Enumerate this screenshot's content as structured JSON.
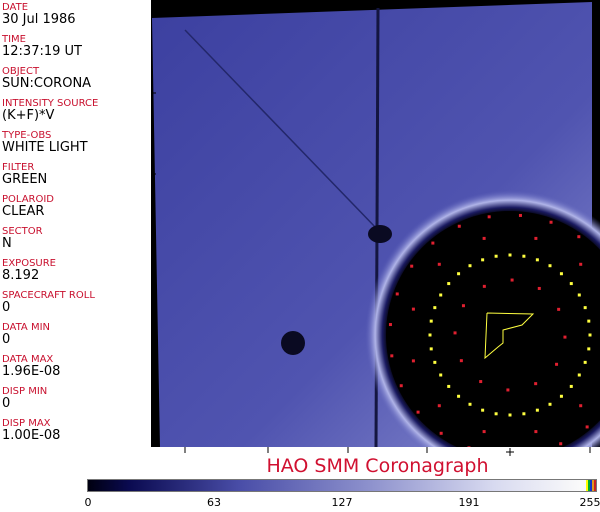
{
  "header_fields": [
    {
      "label": "DATE",
      "value": "30 Jul 1986"
    },
    {
      "label": "TIME",
      "value": "12:37:19 UT"
    },
    {
      "label": "OBJECT",
      "value": "SUN:CORONA"
    },
    {
      "label": "INTENSITY SOURCE",
      "value": "(K+F)*V"
    },
    {
      "label": "TYPE-OBS",
      "value": "WHITE LIGHT"
    },
    {
      "label": "FILTER",
      "value": "GREEN"
    },
    {
      "label": "POLAROID",
      "value": "CLEAR"
    },
    {
      "label": "SECTOR",
      "value": "N"
    },
    {
      "label": "EXPOSURE",
      "value": "8.192"
    },
    {
      "label": "SPACECRAFT ROLL",
      "value": "0"
    },
    {
      "label": "DATA MIN",
      "value": "0"
    },
    {
      "label": "DATA MAX",
      "value": "1.96E-08"
    },
    {
      "label": "DISP MIN",
      "value": "0"
    },
    {
      "label": "DISP MAX",
      "value": "1.00E-08"
    }
  ],
  "title": "HAO   SMM Coronagraph",
  "colorbar": {
    "ticks": [
      "0",
      "63",
      "127",
      "191",
      "255"
    ],
    "colors": {
      "low": "#000010",
      "mid": "#4a4ea8",
      "high": "#fafafa"
    }
  },
  "overlay_colors": {
    "label": "#c8102e",
    "yellow_markers": "#ffff40",
    "red_markers": "#e02030"
  }
}
